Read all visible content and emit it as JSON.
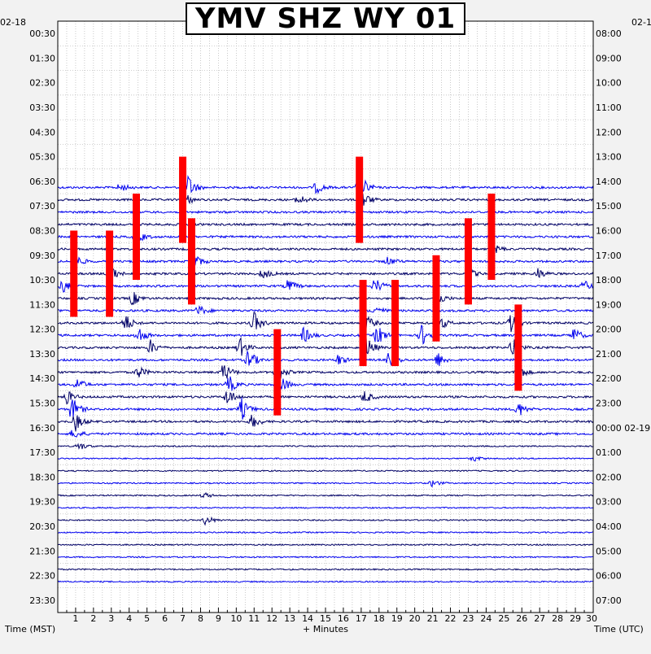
{
  "chart_data": {
    "type": "helicorder",
    "title": "YMV SHZ WY 01",
    "xlabel": "+ Minutes",
    "ylabel_left": "Time (MST)",
    "ylabel_right": "Time (UTC)",
    "date_left": "02-18",
    "date_right": "02-1",
    "x_range": [
      0,
      30
    ],
    "x_ticks": [
      "1",
      "2",
      "3",
      "4",
      "5",
      "6",
      "7",
      "8",
      "9",
      "10",
      "11",
      "12",
      "13",
      "14",
      "15",
      "16",
      "17",
      "18",
      "19",
      "20",
      "21",
      "22",
      "23",
      "24",
      "25",
      "26",
      "27",
      "28",
      "29",
      "30"
    ],
    "grid": true,
    "trace_colors": [
      "#000066",
      "#0000ee"
    ],
    "marker_color": "#ff0000",
    "left_ticks": [
      "00:30",
      "01:30",
      "02:30",
      "03:30",
      "04:30",
      "05:30",
      "06:30",
      "07:30",
      "08:30",
      "09:30",
      "10:30",
      "11:30",
      "12:30",
      "13:30",
      "14:30",
      "15:30",
      "16:30",
      "17:30",
      "18:30",
      "19:30",
      "20:30",
      "21:30",
      "22:30",
      "23:30"
    ],
    "right_ticks": [
      "08:00",
      "09:00",
      "10:00",
      "11:00",
      "12:00",
      "13:00",
      "14:00",
      "15:00",
      "16:00",
      "17:00",
      "18:00",
      "19:00",
      "20:00",
      "21:00",
      "22:00",
      "23:00",
      "00:00 02-19",
      "01:00",
      "02:00",
      "03:00",
      "04:00",
      "05:00",
      "06:00",
      "07:00"
    ],
    "first_trace_row": 13,
    "last_trace_row": 45,
    "activity": [
      {
        "row": 13,
        "minute": 3.5,
        "amp": 1.2
      },
      {
        "row": 13,
        "minute": 7.3,
        "amp": 3.5
      },
      {
        "row": 13,
        "minute": 14.5,
        "amp": 1.6
      },
      {
        "row": 13,
        "minute": 16.9,
        "amp": 4.5
      },
      {
        "row": 14,
        "minute": 7.0,
        "amp": 2.8
      },
      {
        "row": 14,
        "minute": 13.5,
        "amp": 1.5
      },
      {
        "row": 14,
        "minute": 17.1,
        "amp": 2.2
      },
      {
        "row": 17,
        "minute": 4.4,
        "amp": 2.2
      },
      {
        "row": 18,
        "minute": 24.4,
        "amp": 1.8
      },
      {
        "row": 19,
        "minute": 1.0,
        "amp": 1.8
      },
      {
        "row": 19,
        "minute": 7.6,
        "amp": 2.5
      },
      {
        "row": 19,
        "minute": 18.5,
        "amp": 1.2
      },
      {
        "row": 20,
        "minute": 2.9,
        "amp": 2.5
      },
      {
        "row": 20,
        "minute": 11.5,
        "amp": 1.5
      },
      {
        "row": 20,
        "minute": 23.0,
        "amp": 1.6
      },
      {
        "row": 20,
        "minute": 26.9,
        "amp": 1.5
      },
      {
        "row": 21,
        "minute": 0.3,
        "amp": 1.8
      },
      {
        "row": 21,
        "minute": 12.9,
        "amp": 2.0
      },
      {
        "row": 21,
        "minute": 17.8,
        "amp": 2.2
      },
      {
        "row": 21,
        "minute": 29.5,
        "amp": 1.4
      },
      {
        "row": 22,
        "minute": 4.2,
        "amp": 2.0
      },
      {
        "row": 22,
        "minute": 21.3,
        "amp": 1.8
      },
      {
        "row": 23,
        "minute": 7.9,
        "amp": 1.5
      },
      {
        "row": 23,
        "minute": 17.8,
        "amp": 1.5
      },
      {
        "row": 24,
        "minute": 3.8,
        "amp": 2.5
      },
      {
        "row": 24,
        "minute": 11.0,
        "amp": 3.0
      },
      {
        "row": 24,
        "minute": 17.2,
        "amp": 3.0
      },
      {
        "row": 24,
        "minute": 21.3,
        "amp": 2.8
      },
      {
        "row": 24,
        "minute": 25.4,
        "amp": 2.5
      },
      {
        "row": 25,
        "minute": 4.5,
        "amp": 2.5
      },
      {
        "row": 25,
        "minute": 13.8,
        "amp": 2.2
      },
      {
        "row": 25,
        "minute": 17.9,
        "amp": 3.0
      },
      {
        "row": 25,
        "minute": 20.4,
        "amp": 3.0
      },
      {
        "row": 25,
        "minute": 28.9,
        "amp": 2.2
      },
      {
        "row": 26,
        "minute": 5.2,
        "amp": 2.0
      },
      {
        "row": 26,
        "minute": 10.2,
        "amp": 2.8
      },
      {
        "row": 26,
        "minute": 17.3,
        "amp": 3.2
      },
      {
        "row": 26,
        "minute": 25.5,
        "amp": 2.5
      },
      {
        "row": 27,
        "minute": 10.7,
        "amp": 3.0
      },
      {
        "row": 27,
        "minute": 15.7,
        "amp": 1.5
      },
      {
        "row": 27,
        "minute": 18.6,
        "amp": 2.5
      },
      {
        "row": 27,
        "minute": 21.3,
        "amp": 2.0
      },
      {
        "row": 28,
        "minute": 4.5,
        "amp": 1.8
      },
      {
        "row": 28,
        "minute": 9.3,
        "amp": 2.8
      },
      {
        "row": 28,
        "minute": 12.3,
        "amp": 3.0
      },
      {
        "row": 28,
        "minute": 25.8,
        "amp": 2.2
      },
      {
        "row": 29,
        "minute": 1.1,
        "amp": 1.8
      },
      {
        "row": 29,
        "minute": 9.6,
        "amp": 2.5
      },
      {
        "row": 29,
        "minute": 12.5,
        "amp": 2.5
      },
      {
        "row": 30,
        "minute": 0.5,
        "amp": 2.0
      },
      {
        "row": 30,
        "minute": 9.5,
        "amp": 2.5
      },
      {
        "row": 30,
        "minute": 17.2,
        "amp": 1.8
      },
      {
        "row": 31,
        "minute": 0.8,
        "amp": 3.5
      },
      {
        "row": 31,
        "minute": 10.3,
        "amp": 3.0
      },
      {
        "row": 31,
        "minute": 25.8,
        "amp": 2.2
      },
      {
        "row": 32,
        "minute": 1.0,
        "amp": 2.5
      },
      {
        "row": 32,
        "minute": 10.9,
        "amp": 2.0
      },
      {
        "row": 33,
        "minute": 0.9,
        "amp": 1.5
      },
      {
        "row": 34,
        "minute": 1.2,
        "amp": 1.2
      },
      {
        "row": 35,
        "minute": 23.3,
        "amp": 0.8
      },
      {
        "row": 37,
        "minute": 21.0,
        "amp": 1.0
      },
      {
        "row": 38,
        "minute": 8.2,
        "amp": 0.8
      },
      {
        "row": 40,
        "minute": 8.3,
        "amp": 1.5
      }
    ],
    "markers": [
      {
        "row": 14,
        "minute": 7.0
      },
      {
        "row": 14,
        "minute": 16.9
      },
      {
        "row": 17,
        "minute": 4.4
      },
      {
        "row": 17,
        "minute": 24.3
      },
      {
        "row": 19,
        "minute": 7.5
      },
      {
        "row": 19,
        "minute": 23.0
      },
      {
        "row": 20,
        "minute": 0.9
      },
      {
        "row": 20,
        "minute": 2.9
      },
      {
        "row": 22,
        "minute": 21.2
      },
      {
        "row": 24,
        "minute": 17.1
      },
      {
        "row": 24,
        "minute": 18.9
      },
      {
        "row": 26,
        "minute": 25.8
      },
      {
        "row": 28,
        "minute": 12.3
      }
    ]
  }
}
